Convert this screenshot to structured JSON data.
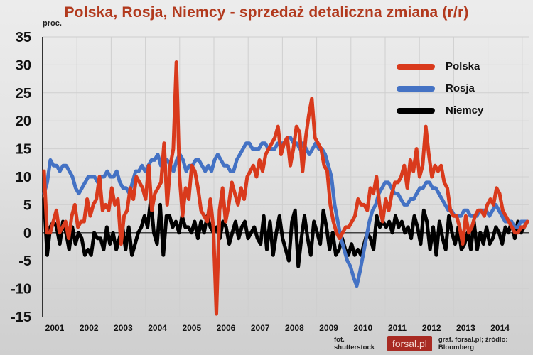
{
  "header": {
    "title": "Polska, Rosja, Niemcy - sprzedaż detaliczna zmiana (r/r)",
    "unit": "proc."
  },
  "legend": [
    {
      "label": "Polska",
      "color": "#d93a1c"
    },
    {
      "label": "Rosja",
      "color": "#4472c4"
    },
    {
      "label": "Niemcy",
      "color": "#000000"
    }
  ],
  "footer": {
    "photo_credit": "fot. shutterstock",
    "brand": "forsal.pl",
    "source": "graf. forsal.pl;  źródło: Bloomberg"
  },
  "chart_data": {
    "type": "line",
    "title": "Polska, Rosja, Niemcy - sprzedaż detaliczna zmiana (r/r)",
    "xlabel": "",
    "ylabel": "proc.",
    "ylim": [
      -15,
      35
    ],
    "yticks": [
      35,
      30,
      25,
      20,
      15,
      10,
      5,
      0,
      -5,
      -10,
      -15
    ],
    "xticks": [
      "2001",
      "2002",
      "2003",
      "2004",
      "2005",
      "2006",
      "2007",
      "2008",
      "2009",
      "2010",
      "2011",
      "2012",
      "2013",
      "2014"
    ],
    "grid": true,
    "legend_position": "upper right",
    "x_start": "2001-01",
    "frequency": "monthly",
    "series": [
      {
        "name": "Polska",
        "color": "#d93a1c",
        "values": [
          11,
          0,
          0,
          2,
          4,
          0,
          1,
          2,
          -1,
          3,
          5,
          1,
          2,
          2,
          6,
          3,
          5,
          6,
          10,
          4,
          5,
          4,
          8,
          5,
          6,
          -2,
          3,
          4,
          8,
          6,
          10,
          9,
          8,
          6,
          12,
          4,
          7,
          8,
          9,
          16,
          5,
          12,
          15,
          30.5,
          10,
          3,
          8,
          6,
          12,
          11,
          8,
          4,
          3,
          2,
          6,
          1,
          -14.5,
          4,
          8,
          2,
          5,
          9,
          7,
          5,
          8,
          6,
          10,
          11,
          12,
          10,
          13,
          11,
          14,
          15,
          16,
          17,
          19,
          14,
          16,
          17,
          12,
          15,
          19,
          18,
          11,
          17,
          21,
          24,
          17,
          16,
          15,
          12,
          11,
          5,
          2,
          0,
          -1,
          0,
          1,
          1,
          2,
          3,
          6,
          5,
          5,
          4,
          8,
          7,
          10,
          5,
          2,
          6,
          4,
          7,
          9,
          9,
          10,
          12,
          8,
          13,
          11,
          15,
          10,
          12,
          19,
          14,
          10,
          12,
          11,
          12,
          9,
          8,
          4,
          3,
          3,
          1,
          -2,
          3,
          0,
          1,
          3,
          4,
          4,
          3,
          5,
          6,
          5,
          8,
          7,
          4,
          3,
          2,
          1,
          0,
          0,
          1,
          1,
          2
        ]
      },
      {
        "name": "Rosja",
        "color": "#4472c4",
        "values": [
          7,
          9,
          13,
          12,
          12,
          11,
          12,
          12,
          11,
          10,
          8,
          7,
          8,
          9,
          10,
          10,
          10,
          9,
          10,
          10,
          11,
          10,
          10,
          11,
          9,
          8,
          8,
          7,
          9,
          11,
          11,
          12,
          11,
          12,
          13,
          13,
          14,
          12,
          13,
          13,
          12,
          11,
          13,
          14,
          13,
          11,
          12,
          12,
          13,
          13,
          12,
          11,
          12,
          11,
          13,
          14,
          13,
          12,
          12,
          11,
          11,
          13,
          14,
          15,
          16,
          16,
          15,
          15,
          15,
          16,
          16,
          15,
          15,
          15,
          16,
          16,
          16,
          17,
          17,
          16,
          16,
          15,
          16,
          15,
          14,
          15,
          16,
          15,
          15,
          14,
          12,
          10,
          5,
          2,
          -1,
          -3,
          -5,
          -6,
          -8,
          -9.5,
          -7,
          -4,
          -1,
          2,
          4,
          5,
          7,
          8,
          9,
          9,
          8,
          7,
          7,
          6,
          5,
          5,
          6,
          6,
          7,
          8,
          8,
          9,
          9,
          8,
          8,
          7,
          6,
          5,
          4,
          4,
          3,
          3,
          3,
          4,
          4,
          3,
          3,
          3,
          4,
          4,
          4,
          3,
          4,
          5,
          4,
          3,
          2,
          2,
          2,
          1,
          1,
          2,
          2,
          2
        ]
      },
      {
        "name": "Niemcy",
        "color": "#000000",
        "values": [
          6,
          -4,
          1,
          2,
          1,
          -2,
          2,
          0,
          -3,
          1,
          -2,
          0,
          -1,
          -4,
          -3,
          -4,
          0,
          -1,
          -1,
          -3,
          1,
          -2,
          0,
          -3,
          -1,
          1,
          -3,
          1,
          -4,
          -2,
          0,
          1,
          3,
          1,
          6,
          0,
          -2,
          5,
          -4,
          3,
          3,
          1,
          2,
          0,
          3,
          1,
          1,
          0,
          2,
          -1,
          2,
          0,
          3,
          1,
          0,
          1,
          -1,
          2,
          1,
          -2,
          0,
          2,
          -1,
          1,
          2,
          -1,
          0,
          1,
          -1,
          -2,
          3,
          -3,
          2,
          -4,
          0,
          3,
          -1,
          -3,
          -5,
          2,
          4,
          -6,
          -1,
          3,
          -1,
          -4,
          2,
          0,
          -2,
          4,
          1,
          -3,
          0,
          -4,
          -3,
          -1,
          -3,
          -4,
          -2,
          -4,
          -3,
          -4,
          -2,
          0,
          -1,
          -3,
          3,
          1,
          2,
          1,
          2,
          0,
          3,
          1,
          2,
          0,
          1,
          -1,
          3,
          1,
          -2,
          4,
          2,
          -3,
          1,
          -4,
          2,
          -1,
          -3,
          3,
          0,
          -2,
          1,
          -3,
          -2,
          0,
          -3,
          2,
          -3,
          0,
          -2,
          1,
          -2,
          -1,
          1,
          0,
          -2,
          1,
          0,
          2,
          -1,
          2,
          0,
          1,
          2
        ]
      }
    ]
  }
}
